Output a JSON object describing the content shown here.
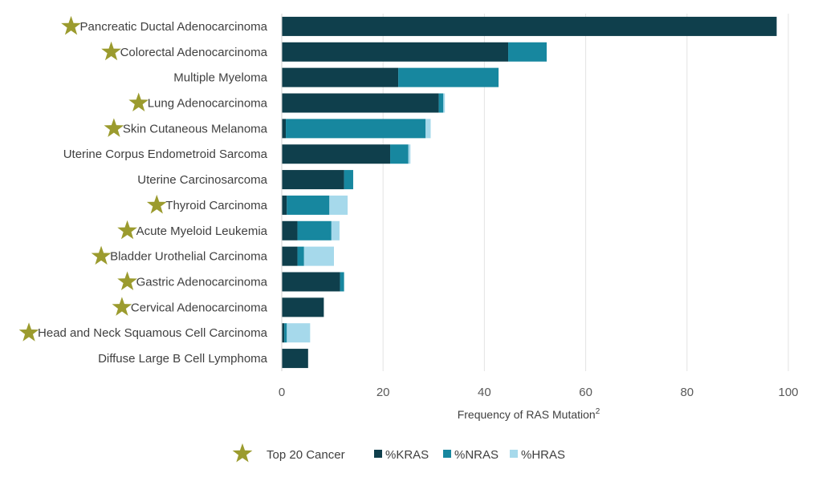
{
  "chart_data": {
    "type": "bar",
    "orientation": "horizontal",
    "stacked": true,
    "categories": [
      "Pancreatic Ductal Adenocarcinoma",
      "Colorectal Adenocarcinoma",
      "Multiple Myeloma",
      "Lung Adenocarcinoma",
      "Skin Cutaneous Melanoma",
      "Uterine Corpus Endometroid Sarcoma",
      "Uterine Carcinosarcoma",
      "Thyroid Carcinoma",
      "Acute Myeloid Leukemia",
      "Bladder Urothelial Carcinoma",
      "Gastric Adenocarcinoma",
      "Cervical Adenocarcinoma",
      "Head and Neck Squamous Cell Carcinoma",
      "Diffuse Large B Cell Lymphoma"
    ],
    "top20": [
      true,
      true,
      false,
      true,
      true,
      false,
      false,
      true,
      true,
      true,
      true,
      true,
      true,
      false
    ],
    "series": [
      {
        "name": "%KRAS",
        "color": "#0f3f4c",
        "values": [
          97.7,
          44.7,
          23.0,
          31.0,
          0.8,
          21.4,
          12.3,
          1.0,
          3.1,
          3.1,
          11.5,
          8.3,
          0.5,
          5.2
        ]
      },
      {
        "name": "%NRAS",
        "color": "#17879f",
        "values": [
          0.0,
          7.6,
          19.8,
          0.9,
          27.6,
          3.6,
          1.8,
          8.4,
          6.7,
          1.3,
          0.8,
          0.0,
          0.5,
          0.0
        ]
      },
      {
        "name": "%HRAS",
        "color": "#a6d9eb",
        "values": [
          0.0,
          0.0,
          0.0,
          0.3,
          1.0,
          0.4,
          0.0,
          3.6,
          1.6,
          5.9,
          0.0,
          0.0,
          4.6,
          0.0
        ]
      }
    ],
    "xlabel": "Frequency of RAS Mutation",
    "xlabel_superscript": "2",
    "ylabel": "",
    "xlim": [
      0,
      100
    ],
    "xticks": [
      0,
      20,
      40,
      60,
      80,
      100
    ],
    "grid": true,
    "legend_position": "bottom",
    "legend_star_label": "Top 20 Cancer",
    "star_color": "#9b9b2e"
  }
}
